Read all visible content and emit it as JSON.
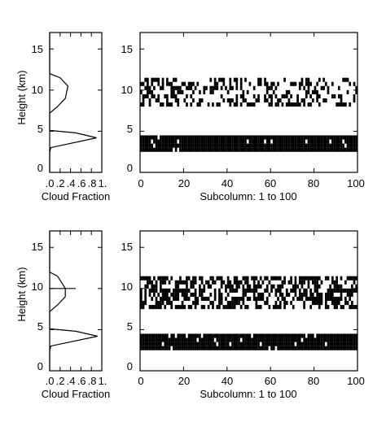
{
  "chart_data": [
    {
      "type": "line",
      "xlabel": "Cloud Fraction",
      "ylabel": "Height (km)",
      "xlim": [
        0,
        1
      ],
      "ylim": [
        0,
        17
      ],
      "x_ticks": [
        ".0",
        ".2",
        ".4",
        ".6",
        ".8",
        "1."
      ],
      "y_ticks": [
        "0",
        "5",
        "10",
        "15"
      ],
      "profile": {
        "height": [
          0,
          2.4,
          3.0,
          4.2,
          4.8,
          5.1,
          6.0,
          7.2,
          8.0,
          9.0,
          10.5,
          11.5,
          12.0,
          12.5,
          17
        ],
        "fraction": [
          0,
          0,
          0.02,
          0.9,
          0.5,
          0,
          0,
          0,
          0.15,
          0.3,
          0.35,
          0.2,
          0,
          0,
          0
        ]
      }
    },
    {
      "type": "heatmap",
      "xlabel": "Subcolumn: 1 to 100",
      "xlim": [
        0,
        100
      ],
      "ylim": [
        0,
        17
      ],
      "x_ticks": [
        "0",
        "20",
        "40",
        "60",
        "80",
        "100"
      ],
      "y_ticks": [
        "0",
        "5",
        "10",
        "15"
      ],
      "upper_layer": {
        "bottom_km": 8.0,
        "top_km": 11.5,
        "cover": "sparse"
      },
      "lower_layer": {
        "bottom_km": 2.5,
        "top_km": 4.5,
        "cover": "dense"
      }
    },
    {
      "type": "line",
      "xlabel": "Cloud Fraction",
      "ylabel": "Height (km)",
      "xlim": [
        0,
        1
      ],
      "ylim": [
        0,
        17
      ],
      "x_ticks": [
        ".0",
        ".2",
        ".4",
        ".6",
        ".8",
        "1."
      ],
      "y_ticks": [
        "0",
        "5",
        "10",
        "15"
      ],
      "profile": {
        "height": [
          0,
          2.4,
          3.0,
          4.2,
          4.8,
          5.1,
          6.0,
          7.2,
          8.0,
          9.0,
          10.0,
          11.5,
          12.0,
          17
        ],
        "fraction": [
          0,
          0,
          0.02,
          0.92,
          0.5,
          0,
          0,
          0,
          0.15,
          0.3,
          0.3,
          0.15,
          0,
          0
        ]
      },
      "marker": {
        "height": 10.0,
        "fraction_range": [
          0,
          0.5
        ]
      }
    },
    {
      "type": "heatmap",
      "xlabel": "Subcolumn: 1 to 100",
      "xlim": [
        0,
        100
      ],
      "ylim": [
        0,
        17
      ],
      "x_ticks": [
        "0",
        "20",
        "40",
        "60",
        "80",
        "100"
      ],
      "y_ticks": [
        "0",
        "5",
        "10",
        "15"
      ],
      "upper_layer": {
        "bottom_km": 7.5,
        "top_km": 11.5,
        "cover": "medium"
      },
      "lower_layer": {
        "bottom_km": 2.5,
        "top_km": 4.5,
        "cover": "dense"
      }
    }
  ]
}
